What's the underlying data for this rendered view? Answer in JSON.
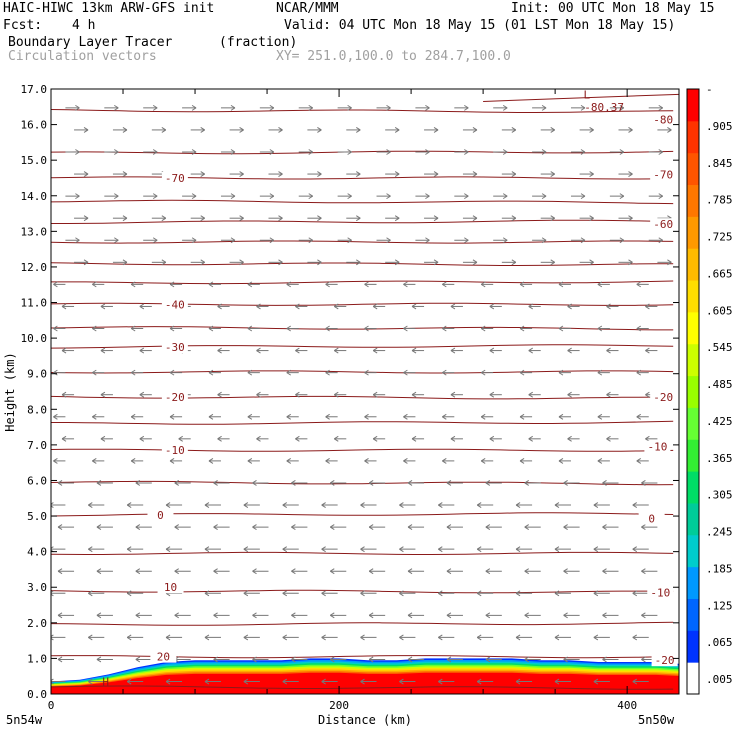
{
  "header": {
    "model": "HAIC-HIWC 13km ARW-GFS init",
    "org": "NCAR/MMM",
    "init": "Init: 00 UTC Mon 18 May 15",
    "fcst_label": "Fcst:",
    "fcst_value": "4 h",
    "valid": "Valid: 04 UTC Mon 18 May 15 (01 LST Mon 18 May 15)",
    "field1_name": "Boundary Layer Tracer",
    "field1_units": "(fraction)",
    "field2_name": "Circulation vectors",
    "xsec_endpoints": "XY= 251.0,100.0 to 284.7,100.0"
  },
  "chart_data": {
    "type": "heatmap",
    "ylabel": "Height (km)",
    "xlabel": "Distance (km)",
    "xlim": [
      0,
      436
    ],
    "ylim": [
      0,
      17
    ],
    "yticks": [
      "0.0",
      "1.0",
      "2.0",
      "3.0",
      "4.0",
      "5.0",
      "6.0",
      "7.0",
      "8.0",
      "9.0",
      "10.0",
      "11.0",
      "12.0",
      "13.0",
      "14.0",
      "15.0",
      "16.0",
      "17.0"
    ],
    "xticks": [
      {
        "v": 0,
        "label": "0"
      },
      {
        "v": 200,
        "label": "200"
      },
      {
        "v": 400,
        "label": "400"
      }
    ],
    "endpoint_left": "5n54w",
    "endpoint_right": "5n50w",
    "temperature_contours": {
      "color": "#8b1a1a",
      "levels_km": [
        0.2,
        1.05,
        1.95,
        2.9,
        3.95,
        5.03,
        5.95,
        6.85,
        7.6,
        8.35,
        9.05,
        9.75,
        10.3,
        10.95,
        11.55,
        12.1,
        12.7,
        13.25,
        13.85,
        14.5,
        15.2,
        16.4
      ],
      "labels": [
        {
          "text": "20",
          "x": 78,
          "y": 1.05
        },
        {
          "text": "10",
          "x": 83,
          "y": 3.0
        },
        {
          "text": "0",
          "x": 76,
          "y": 5.03
        },
        {
          "text": "-10",
          "x": 86,
          "y": 6.85
        },
        {
          "text": "-20",
          "x": 86,
          "y": 8.35
        },
        {
          "text": "-30",
          "x": 86,
          "y": 9.75
        },
        {
          "text": "-40",
          "x": 86,
          "y": 10.95
        },
        {
          "text": "-70",
          "x": 86,
          "y": 14.5
        },
        {
          "text": "-20",
          "x": 426,
          "y": 0.95
        },
        {
          "text": "-10",
          "x": 423,
          "y": 2.85
        },
        {
          "text": "0",
          "x": 417,
          "y": 4.93
        },
        {
          "text": "-10",
          "x": 421,
          "y": 6.95
        },
        {
          "text": "-20",
          "x": 425,
          "y": 8.35
        },
        {
          "text": "-60",
          "x": 425,
          "y": 13.2
        },
        {
          "text": "-70",
          "x": 425,
          "y": 14.6
        },
        {
          "text": "-80",
          "x": 425,
          "y": 16.15
        }
      ],
      "low_marker": {
        "text": "L",
        "x": 372,
        "y": 16.85
      },
      "low_value": {
        "text": "-80.37",
        "x": 384,
        "y": 16.5
      },
      "high_marker": {
        "text": "H",
        "x": 38,
        "y": 0.35
      }
    },
    "tracer_layer": {
      "description_colors": [
        "#ff0000",
        "#ff6400",
        "#ffaa00",
        "#ffdd00",
        "#ccff00",
        "#66ff33",
        "#00dd66",
        "#00cccc",
        "#0099ff",
        "#0033ff"
      ],
      "top_km": [
        0.35,
        0.4,
        0.55,
        0.75,
        0.9,
        0.95,
        0.95,
        0.95,
        0.95,
        1.0,
        1.0,
        0.95,
        0.95,
        1.0,
        1.0,
        1.0,
        1.0,
        0.95,
        0.95,
        0.9,
        0.9,
        0.9,
        0.85
      ],
      "x_km": [
        0,
        20,
        40,
        60,
        80,
        100,
        120,
        140,
        160,
        180,
        200,
        220,
        240,
        260,
        280,
        300,
        320,
        340,
        360,
        380,
        400,
        420,
        436
      ]
    },
    "colorbar": {
      "colors": [
        "#ffffff",
        "#0033ff",
        "#0066ff",
        "#0099ff",
        "#00cccc",
        "#00cc99",
        "#00dd66",
        "#33ee33",
        "#66ff33",
        "#99ff00",
        "#ccff00",
        "#ffff00",
        "#ffdd00",
        "#ffbb00",
        "#ff9900",
        "#ff7700",
        "#ff5500",
        "#ff3300",
        "#ff0000"
      ],
      "labels": [
        "-",
        ".905",
        ".845",
        ".785",
        ".725",
        ".665",
        ".605",
        ".545",
        ".485",
        ".425",
        ".365",
        ".305",
        ".245",
        ".185",
        ".125",
        ".065",
        ".005"
      ]
    },
    "vectors": {
      "color": "#777777",
      "note": "wind arrows; easterly (left-pointing) below ~12 km, westerly (right-pointing) above"
    }
  }
}
